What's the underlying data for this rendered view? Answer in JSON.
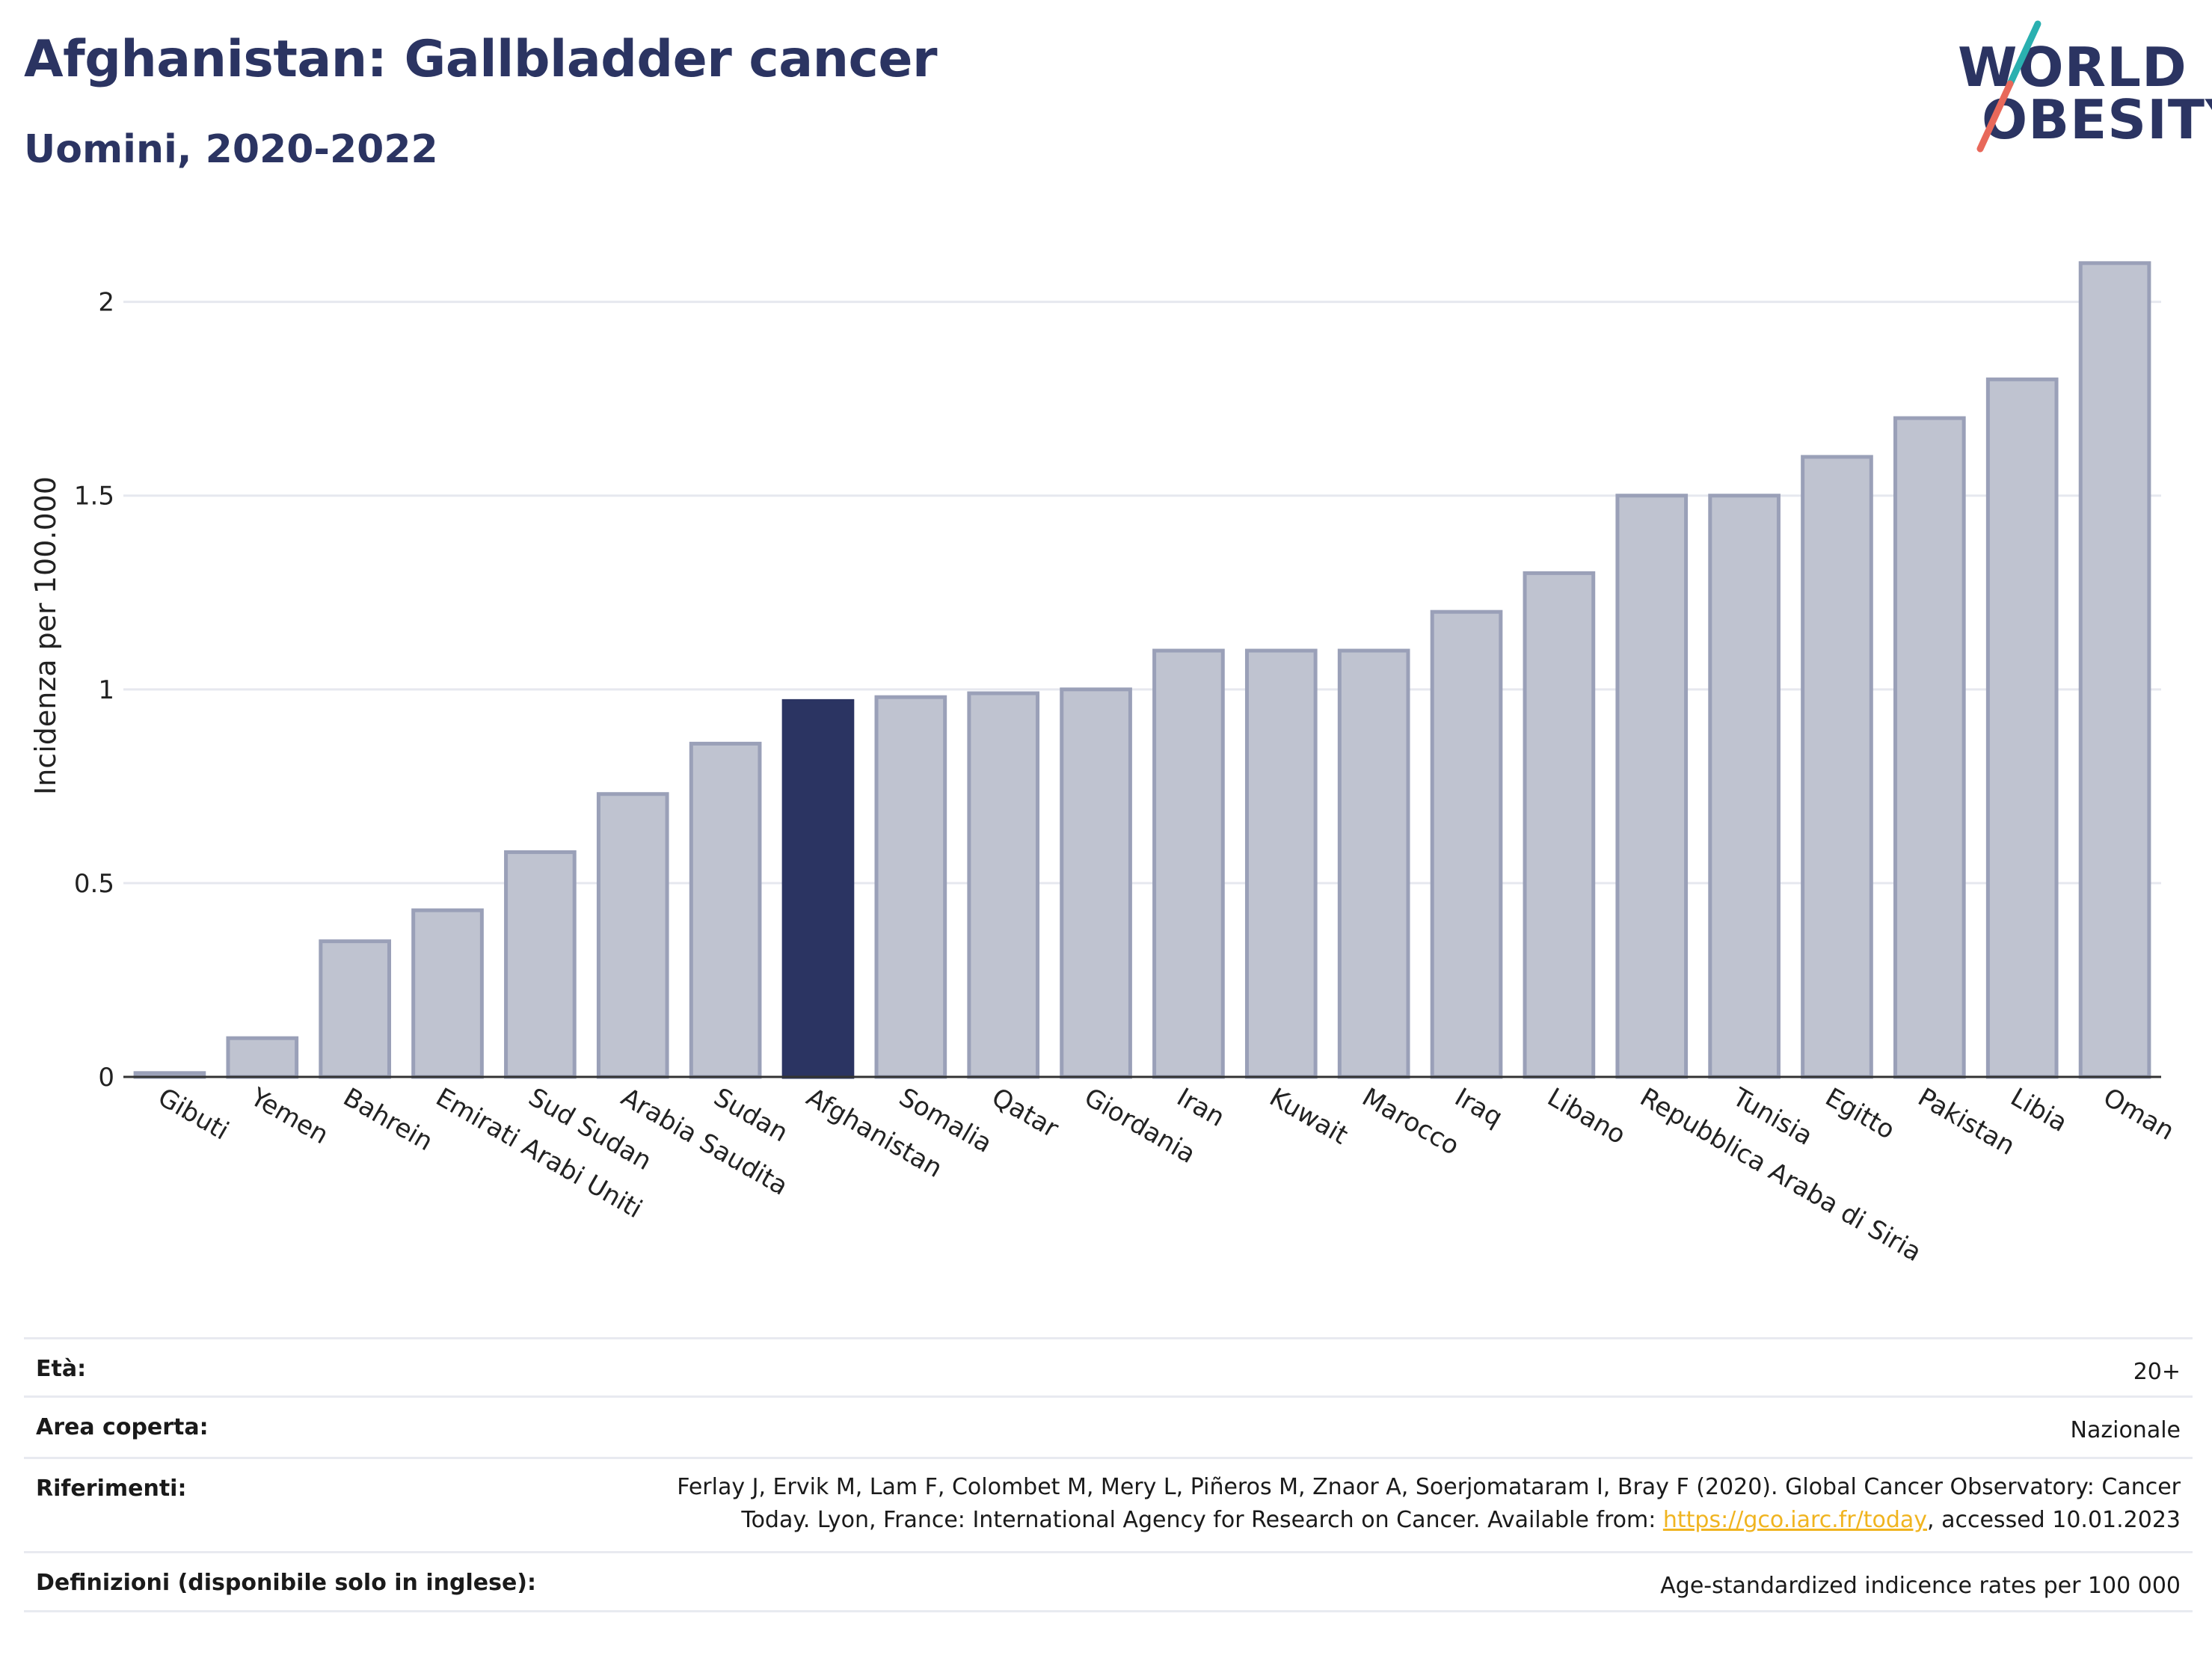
{
  "header": {
    "title": "Afghanistan: Gallbladder cancer",
    "subtitle": "Uomini, 2020-2022"
  },
  "logo": {
    "line1": "WORLD",
    "line2": "OBESITY",
    "colors": {
      "text": "#2b3462",
      "slash_teal": "#2ab0b0",
      "slash_red": "#e8685a"
    }
  },
  "colors": {
    "bar": "#bfc3d0",
    "bar_border": "#9aa0b8",
    "highlight": "#2b3462",
    "grid": "#e6e8ef",
    "link": "#f0b420"
  },
  "chart_data": {
    "type": "bar",
    "title": "Afghanistan: Gallbladder cancer",
    "subtitle": "Uomini, 2020-2022",
    "xlabel": "",
    "ylabel": "Incidenza per 100.000",
    "ylim": [
      0,
      2.2
    ],
    "yticks": [
      0,
      0.5,
      1,
      1.5,
      2
    ],
    "ytick_labels": [
      "0",
      "0.5",
      "1",
      "1.5",
      "2"
    ],
    "grid": true,
    "highlight": "Afghanistan",
    "categories": [
      "Gibuti",
      "Yemen",
      "Bahrein",
      "Emirati Arabi Uniti",
      "Sud Sudan",
      "Arabia Saudita",
      "Sudan",
      "Afghanistan",
      "Somalia",
      "Qatar",
      "Giordania",
      "Iran",
      "Kuwait",
      "Marocco",
      "Iraq",
      "Libano",
      "Repubblica Araba di Siria",
      "Tunisia",
      "Egitto",
      "Pakistan",
      "Libia",
      "Oman"
    ],
    "values": [
      0.01,
      0.1,
      0.35,
      0.43,
      0.58,
      0.73,
      0.86,
      0.97,
      0.98,
      0.99,
      1.0,
      1.1,
      1.1,
      1.1,
      1.2,
      1.3,
      1.5,
      1.5,
      1.6,
      1.7,
      1.8,
      2.1
    ]
  },
  "meta": [
    {
      "label": "Età:",
      "value": "20+"
    },
    {
      "label": "Area coperta:",
      "value": "Nazionale"
    },
    {
      "label": "Riferimenti:",
      "value_line1": "Ferlay J, Ervik M, Lam F, Colombet M, Mery L, Piñeros M, Znaor A, Soerjomataram I, Bray F (2020). Global Cancer Observatory: Cancer",
      "value_line2_pre": "Today. Lyon, France: International Agency for Research on Cancer. Available from: ",
      "link": "https://gco.iarc.fr/today",
      "value_line2_post": ", accessed 10.01.2023"
    },
    {
      "label": "Definizioni (disponibile solo in inglese):",
      "value": "Age-standardized indicence rates per 100 000"
    }
  ]
}
